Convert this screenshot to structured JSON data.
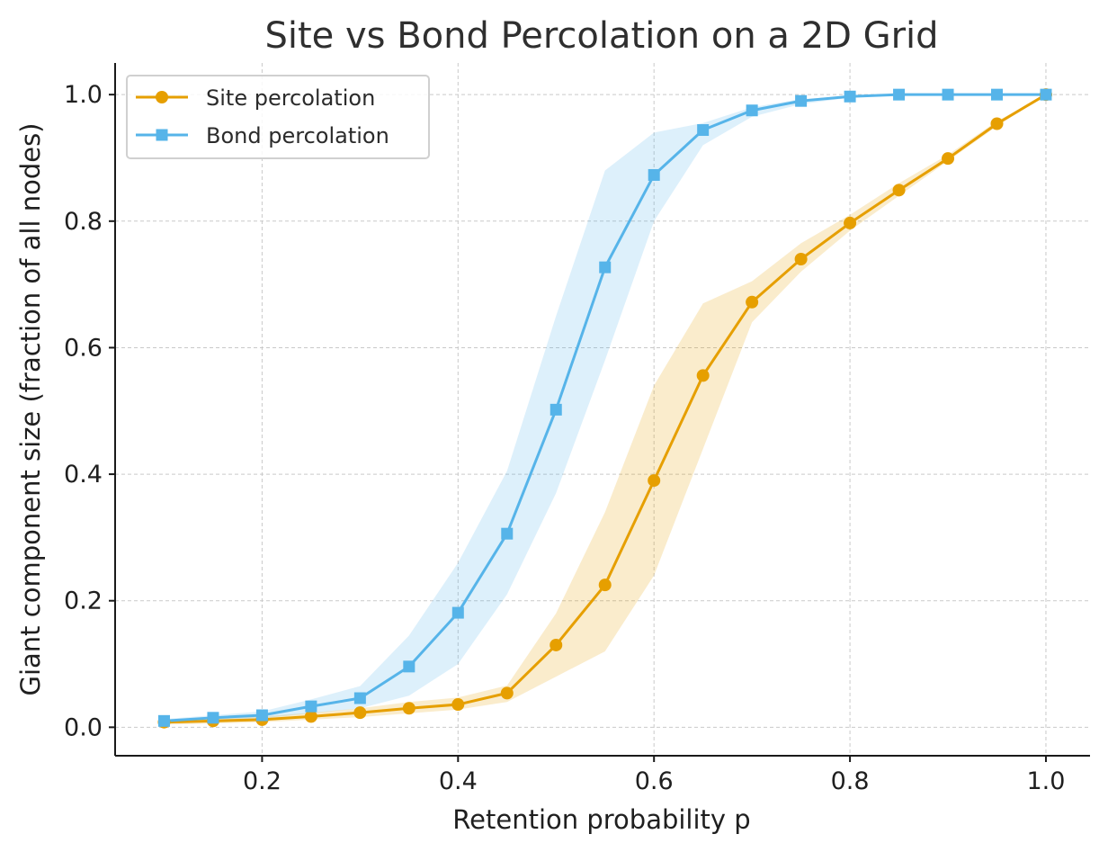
{
  "chart_data": {
    "type": "line",
    "title": "Site vs Bond Percolation on a 2D Grid",
    "xlabel": "Retention probability p",
    "ylabel": "Giant component size (fraction of all nodes)",
    "xlim": [
      0.05,
      1.045
    ],
    "ylim": [
      -0.045,
      1.05
    ],
    "x_ticks": [
      0.2,
      0.4,
      0.6,
      0.8,
      1.0
    ],
    "x_tick_labels": [
      "0.2",
      "0.4",
      "0.6",
      "0.8",
      "1.0"
    ],
    "y_ticks": [
      0.0,
      0.2,
      0.4,
      0.6,
      0.8,
      1.0
    ],
    "y_tick_labels": [
      "0.0",
      "0.2",
      "0.4",
      "0.6",
      "0.8",
      "1.0"
    ],
    "grid": true,
    "legend_position": "top-left",
    "x": [
      0.1,
      0.15,
      0.2,
      0.25,
      0.3,
      0.35,
      0.4,
      0.45,
      0.5,
      0.55,
      0.6,
      0.65,
      0.7,
      0.75,
      0.8,
      0.85,
      0.9,
      0.95,
      1.0
    ],
    "series": [
      {
        "name": "Site percolation",
        "color": "#E69F00",
        "marker": "circle",
        "values": [
          0.008,
          0.01,
          0.012,
          0.017,
          0.023,
          0.03,
          0.036,
          0.054,
          0.13,
          0.225,
          0.39,
          0.556,
          0.672,
          0.74,
          0.797,
          0.849,
          0.899,
          0.954,
          1.0
        ],
        "band_lower": [
          0.004,
          0.006,
          0.008,
          0.012,
          0.016,
          0.022,
          0.028,
          0.04,
          0.08,
          0.12,
          0.24,
          0.44,
          0.64,
          0.72,
          0.785,
          0.84,
          0.895,
          0.95,
          1.0
        ],
        "band_upper": [
          0.012,
          0.014,
          0.017,
          0.023,
          0.03,
          0.04,
          0.047,
          0.066,
          0.18,
          0.34,
          0.54,
          0.67,
          0.705,
          0.765,
          0.81,
          0.86,
          0.905,
          0.958,
          1.0
        ]
      },
      {
        "name": "Bond percolation",
        "color": "#56B4E9",
        "marker": "square",
        "values": [
          0.01,
          0.015,
          0.019,
          0.033,
          0.046,
          0.096,
          0.181,
          0.306,
          0.502,
          0.727,
          0.873,
          0.944,
          0.975,
          0.99,
          0.997,
          1.0,
          1.0,
          1.0,
          1.0
        ],
        "band_lower": [
          0.007,
          0.011,
          0.014,
          0.022,
          0.03,
          0.05,
          0.1,
          0.21,
          0.37,
          0.58,
          0.8,
          0.92,
          0.965,
          0.985,
          0.995,
          1.0,
          1.0,
          1.0,
          1.0
        ],
        "band_upper": [
          0.013,
          0.019,
          0.025,
          0.044,
          0.065,
          0.145,
          0.26,
          0.405,
          0.65,
          0.88,
          0.94,
          0.955,
          0.98,
          0.993,
          0.998,
          1.0,
          1.0,
          1.0,
          1.0
        ]
      }
    ]
  }
}
